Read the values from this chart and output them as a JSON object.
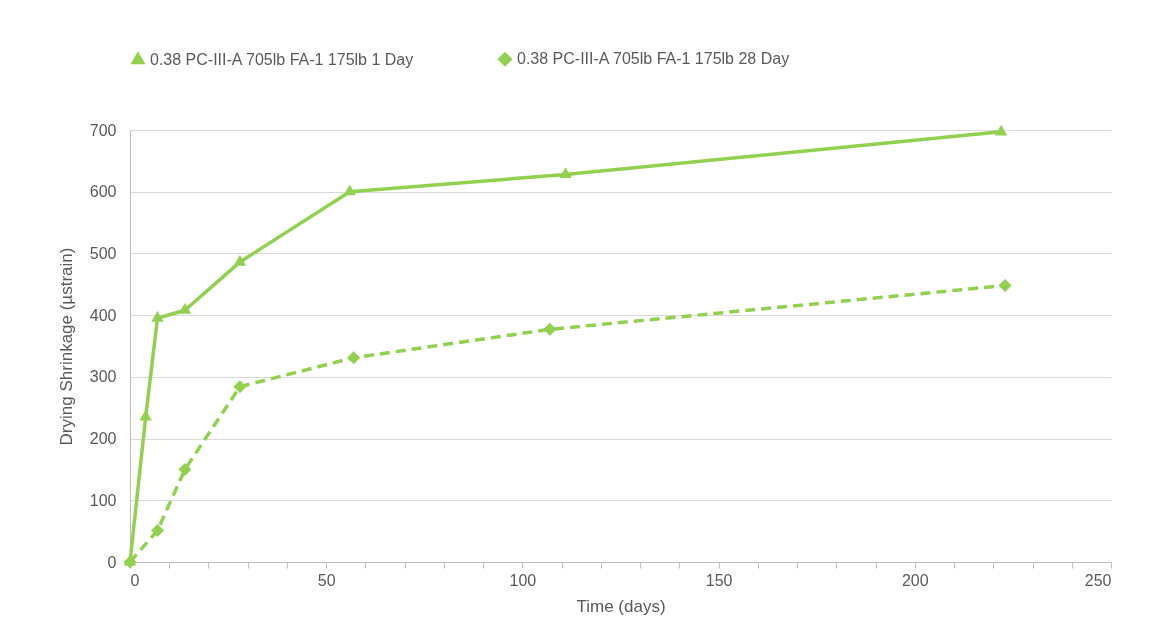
{
  "chart_data": {
    "type": "line",
    "xlabel": "Time (days)",
    "ylabel": "Drying Shrinkage (µstrain)",
    "xlim": [
      0,
      250
    ],
    "ylim": [
      0,
      700
    ],
    "xticks": [
      0,
      {
        "value": 10,
        "label": null
      },
      {
        "value": 20,
        "label": null
      },
      {
        "value": 30,
        "label": null
      },
      {
        "value": 40,
        "label": null
      },
      50,
      {
        "value": 60,
        "label": null
      },
      {
        "value": 70,
        "label": null
      },
      {
        "value": 80,
        "label": null
      },
      {
        "value": 90,
        "label": null
      },
      100,
      {
        "value": 110,
        "label": null
      },
      {
        "value": 120,
        "label": null
      },
      {
        "value": 130,
        "label": null
      },
      {
        "value": 140,
        "label": null
      },
      150,
      {
        "value": 160,
        "label": null
      },
      {
        "value": 170,
        "label": null
      },
      {
        "value": 180,
        "label": null
      },
      {
        "value": 190,
        "label": null
      },
      200,
      {
        "value": 210,
        "label": null
      },
      {
        "value": 220,
        "label": null
      },
      {
        "value": 230,
        "label": null
      },
      {
        "value": 240,
        "label": null
      },
      250
    ],
    "yticks": [
      0,
      100,
      200,
      300,
      400,
      500,
      600,
      700
    ],
    "grid": "y",
    "legend": "top",
    "series": [
      {
        "name": "0.38 PC-III-A 705lb FA-1 175lb 1 Day",
        "color": "#92d050",
        "marker": "triangle",
        "line_style": "solid",
        "x": [
          0,
          4,
          7,
          14,
          28,
          56,
          111,
          222
        ],
        "values": [
          0,
          235,
          395,
          408,
          486,
          600,
          628,
          697
        ]
      },
      {
        "name": "0.38 PC-III-A 705lb FA-1 175lb 28 Day",
        "color": "#92d050",
        "marker": "diamond",
        "line_style": "dashed",
        "x": [
          0,
          7,
          14,
          28,
          57,
          107,
          223
        ],
        "values": [
          0,
          51,
          150,
          284,
          331,
          377,
          448
        ]
      }
    ]
  }
}
